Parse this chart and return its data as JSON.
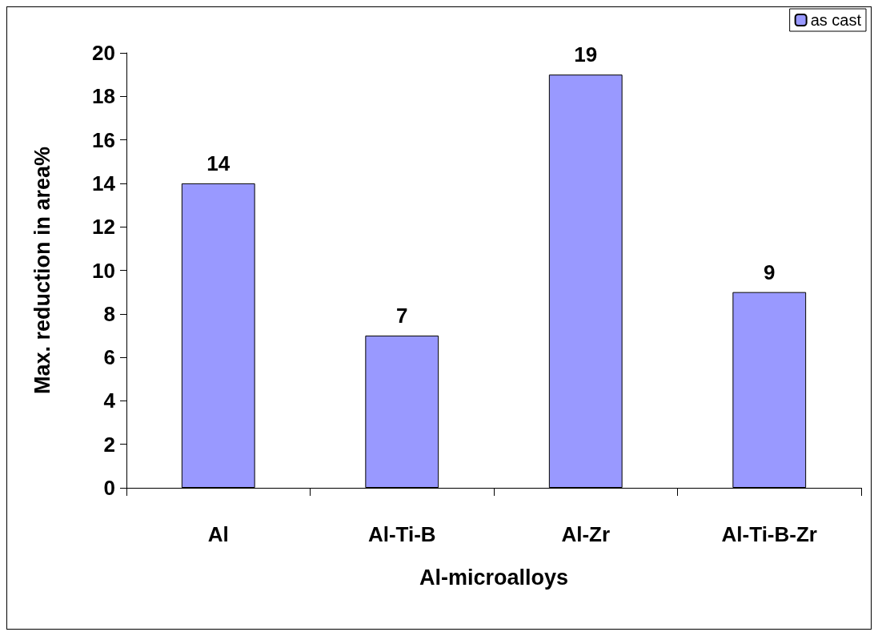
{
  "chart_data": {
    "type": "bar",
    "xlabel": "Al-microalloys",
    "ylabel": "Max. reduction in area%",
    "categories": [
      "Al",
      "Al-Ti-B",
      "Al-Zr",
      "Al-Ti-B-Zr"
    ],
    "series": [
      {
        "name": "as cast",
        "color": "#9999ff",
        "values": [
          14,
          7,
          19,
          9
        ]
      }
    ],
    "ylim": [
      0,
      20
    ],
    "yticks": [
      0,
      2,
      4,
      6,
      8,
      10,
      12,
      14,
      16,
      18,
      20
    ],
    "grid": false,
    "legend": "top right",
    "data_labels": true
  }
}
